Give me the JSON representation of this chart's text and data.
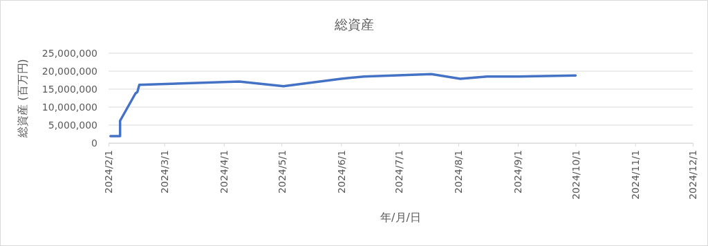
{
  "chart_data": {
    "type": "line",
    "title": "総資産",
    "xlabel": "年/月/日",
    "ylabel": "総資産 (百万円)",
    "x": [
      "2024-02-02",
      "2024-02-07",
      "2024-02-07",
      "2024-02-15",
      "2024-02-16",
      "2024-02-17",
      "2024-04-09",
      "2024-05-02",
      "2024-06-01",
      "2024-06-13",
      "2024-07-18",
      "2024-08-02",
      "2024-08-16",
      "2024-09-01",
      "2024-10-01"
    ],
    "series": [
      {
        "color": "#4472c4",
        "values": [
          1900000,
          1900000,
          6200000,
          13800000,
          14200000,
          16200000,
          17100000,
          15800000,
          17900000,
          18500000,
          19200000,
          17900000,
          18500000,
          18500000,
          18800000
        ]
      }
    ],
    "xlim": [
      "2024-02-01",
      "2024-12-01"
    ],
    "xticks": [
      {
        "value": "2024-02-01",
        "label": "2024/2/1"
      },
      {
        "value": "2024-03-01",
        "label": "2024/3/1"
      },
      {
        "value": "2024-04-01",
        "label": "2024/4/1"
      },
      {
        "value": "2024-05-01",
        "label": "2024/5/1"
      },
      {
        "value": "2024-06-01",
        "label": "2024/6/1"
      },
      {
        "value": "2024-07-01",
        "label": "2024/7/1"
      },
      {
        "value": "2024-08-01",
        "label": "2024/8/1"
      },
      {
        "value": "2024-09-01",
        "label": "2024/9/1"
      },
      {
        "value": "2024-10-01",
        "label": "2024/10/1"
      },
      {
        "value": "2024-11-01",
        "label": "2024/11/1"
      },
      {
        "value": "2024-12-01",
        "label": "2024/12/1"
      }
    ],
    "ylim": [
      0,
      25000000
    ],
    "yticks": [
      0,
      {
        "value": 5000000,
        "label": "5,000,000"
      },
      {
        "value": 10000000,
        "label": "10,000,000"
      },
      {
        "value": 15000000,
        "label": "15,000,000"
      },
      {
        "value": 20000000,
        "label": "20,000,000"
      },
      {
        "value": 25000000,
        "label": "25,000,000"
      }
    ],
    "grid": "y",
    "marker": "none",
    "line_style": "solid"
  }
}
